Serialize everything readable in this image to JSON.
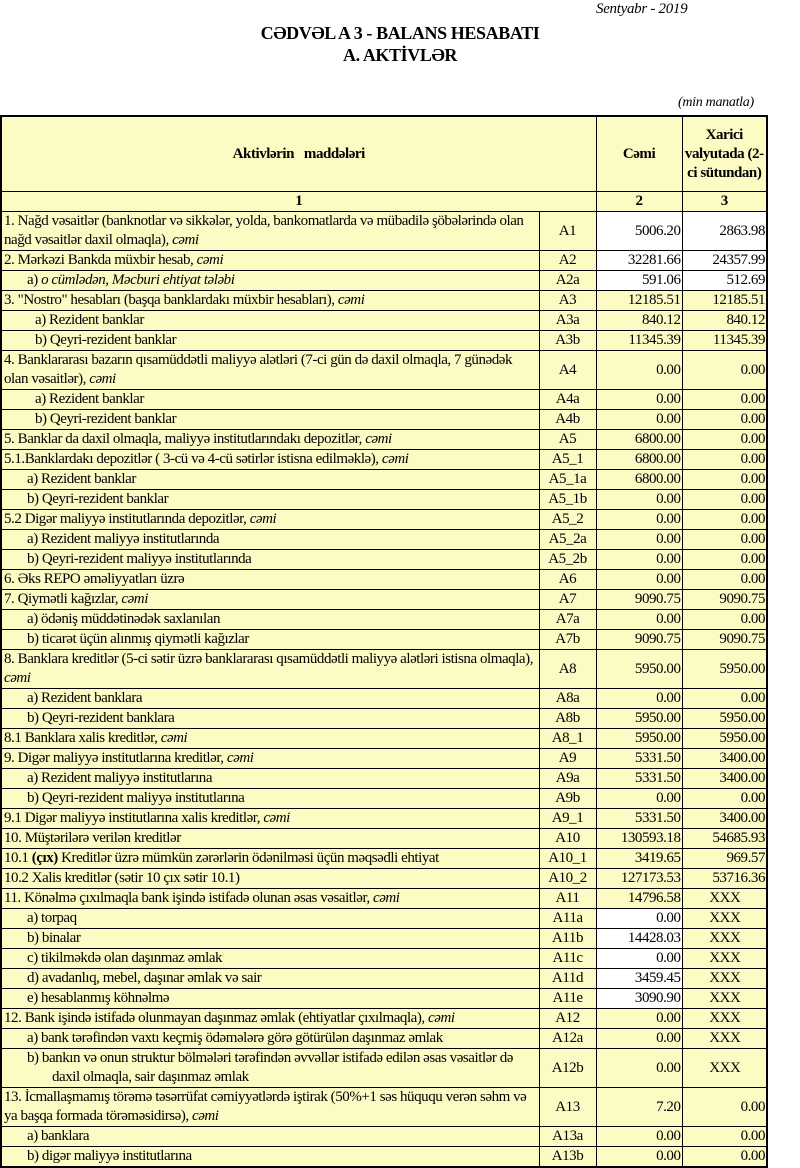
{
  "header": {
    "date": "Sentyabr - 2019",
    "title_line1": "CƏDVƏL A 3 - BALANS HESABATI",
    "title_line2": "A. AKTİVLƏR",
    "unit": "(min manatla)"
  },
  "columns": {
    "items": "Aktivlərin   maddələri",
    "total": "Cəmi",
    "foreign": "Xarici valyutada (2-ci sütundan)",
    "num1": "1",
    "num2": "2",
    "num3": "3"
  },
  "colors": {
    "cell_background": "#fdfbc4",
    "input_cell": "#ffffff"
  },
  "rows": [
    {
      "desc": [
        {
          "t": "1. Nağd vəsaitlər (banknotlar və sikkələr, yolda, bankomatlarda və mübadilə şöbələrində olan nağd vəsaitlər daxil olmaqla), "
        },
        {
          "t": "cəmi",
          "s": "i"
        }
      ],
      "code": "A1",
      "total": "5006.20",
      "foreign": "2863.98",
      "indent": 0,
      "white": [
        1,
        1
      ]
    },
    {
      "desc": [
        {
          "t": "2. Mərkəzi Bankda müxbir hesab, "
        },
        {
          "t": "cəmi",
          "s": "i"
        }
      ],
      "code": "A2",
      "total": "32281.66",
      "foreign": "24357.99",
      "indent": 0,
      "white": [
        1,
        1
      ]
    },
    {
      "desc": [
        {
          "t": "a) "
        },
        {
          "t": "o cümlədən, Məcburi ehtiyat tələbi",
          "s": "i"
        }
      ],
      "code": "A2a",
      "total": "591.06",
      "foreign": "512.69",
      "indent": 1,
      "white": [
        1,
        1
      ]
    },
    {
      "desc": [
        {
          "t": "3. \"Nostro\" hesabları (başqa banklardakı müxbir hesabları), "
        },
        {
          "t": "cəmi",
          "s": "i"
        }
      ],
      "code": "A3",
      "total": "12185.51",
      "foreign": "12185.51",
      "indent": 0
    },
    {
      "desc": [
        {
          "t": "a) Rezident banklar"
        }
      ],
      "code": "A3a",
      "total": "840.12",
      "foreign": "840.12",
      "indent": 2
    },
    {
      "desc": [
        {
          "t": "b) Qeyri-rezident banklar"
        }
      ],
      "code": "A3b",
      "total": "11345.39",
      "foreign": "11345.39",
      "indent": 2
    },
    {
      "desc": [
        {
          "t": "4. Banklararası bazarın qısamüddətli maliyyə alətləri (7-ci gün də daxil olmaqla, 7 günədək olan vəsaitlər), "
        },
        {
          "t": "cəmi",
          "s": "i"
        }
      ],
      "code": "A4",
      "total": "0.00",
      "foreign": "0.00",
      "indent": 0
    },
    {
      "desc": [
        {
          "t": "a) Rezident banklar"
        }
      ],
      "code": "A4a",
      "total": "0.00",
      "foreign": "0.00",
      "indent": 2
    },
    {
      "desc": [
        {
          "t": "b) Qeyri-rezident banklar"
        }
      ],
      "code": "A4b",
      "total": "0.00",
      "foreign": "0.00",
      "indent": 2
    },
    {
      "desc": [
        {
          "t": "5. Banklar da daxil olmaqla, maliyyə institutlarındakı depozitlər, "
        },
        {
          "t": "cəmi",
          "s": "i"
        }
      ],
      "code": "A5",
      "total": "6800.00",
      "foreign": "0.00",
      "indent": 0
    },
    {
      "desc": [
        {
          "t": "5.1.Banklardakı depozitlər ( 3-cü və 4-cü sətirlər istisna edilməklə), "
        },
        {
          "t": "cəmi",
          "s": "i"
        }
      ],
      "code": "A5_1",
      "total": "6800.00",
      "foreign": "0.00",
      "indent": 0
    },
    {
      "desc": [
        {
          "t": "a) Rezident banklar"
        }
      ],
      "code": "A5_1a",
      "total": "6800.00",
      "foreign": "0.00",
      "indent": 1
    },
    {
      "desc": [
        {
          "t": "b) Qeyri-rezident banklar"
        }
      ],
      "code": "A5_1b",
      "total": "0.00",
      "foreign": "0.00",
      "indent": 1
    },
    {
      "desc": [
        {
          "t": "5.2 Digər maliyyə institutlarında depozitlər, "
        },
        {
          "t": "cəmi",
          "s": "i"
        }
      ],
      "code": "A5_2",
      "total": "0.00",
      "foreign": "0.00",
      "indent": 0
    },
    {
      "desc": [
        {
          "t": "a) Rezident maliyyə institutlarında"
        }
      ],
      "code": "A5_2a",
      "total": "0.00",
      "foreign": "0.00",
      "indent": 1
    },
    {
      "desc": [
        {
          "t": "b) Qeyri-rezident maliyyə institutlarında"
        }
      ],
      "code": "A5_2b",
      "total": "0.00",
      "foreign": "0.00",
      "indent": 1
    },
    {
      "desc": [
        {
          "t": "6. Əks REPO əməliyyatları üzrə"
        }
      ],
      "code": "A6",
      "total": "0.00",
      "foreign": "0.00",
      "indent": 0
    },
    {
      "desc": [
        {
          "t": "7. Qiymətli kağızlar, "
        },
        {
          "t": "cəmi",
          "s": "i"
        }
      ],
      "code": "A7",
      "total": "9090.75",
      "foreign": "9090.75",
      "indent": 0
    },
    {
      "desc": [
        {
          "t": "a) ödəniş müddətinədək saxlanılan"
        }
      ],
      "code": "A7a",
      "total": "0.00",
      "foreign": "0.00",
      "indent": 1
    },
    {
      "desc": [
        {
          "t": "b) ticarət üçün alınmış qiymətli kağızlar"
        }
      ],
      "code": "A7b",
      "total": "9090.75",
      "foreign": "9090.75",
      "indent": 1
    },
    {
      "desc": [
        {
          "t": "8. Banklara kreditlər (5-ci sətir üzrə banklararası qısamüddətli maliyyə alətləri istisna olmaqla), "
        },
        {
          "t": "cəmi",
          "s": "i"
        }
      ],
      "code": "A8",
      "total": "5950.00",
      "foreign": "5950.00",
      "indent": 0
    },
    {
      "desc": [
        {
          "t": "a) Rezident banklara"
        }
      ],
      "code": "A8a",
      "total": "0.00",
      "foreign": "0.00",
      "indent": 1
    },
    {
      "desc": [
        {
          "t": "b) Qeyri-rezident banklara"
        }
      ],
      "code": "A8b",
      "total": "5950.00",
      "foreign": "5950.00",
      "indent": 1
    },
    {
      "desc": [
        {
          "t": "8.1 Banklara xalis kreditlər, "
        },
        {
          "t": "cəmi",
          "s": "i"
        }
      ],
      "code": "A8_1",
      "total": "5950.00",
      "foreign": "5950.00",
      "indent": 0
    },
    {
      "desc": [
        {
          "t": "9. Digər maliyyə institutlarına kreditlər, "
        },
        {
          "t": "cəmi",
          "s": "i"
        }
      ],
      "code": "A9",
      "total": "5331.50",
      "foreign": "3400.00",
      "indent": 0
    },
    {
      "desc": [
        {
          "t": "a) Rezident maliyyə institutlarına"
        }
      ],
      "code": "A9a",
      "total": "5331.50",
      "foreign": "3400.00",
      "indent": 1
    },
    {
      "desc": [
        {
          "t": "b) Qeyri-rezident maliyyə institutlarına"
        }
      ],
      "code": "A9b",
      "total": "0.00",
      "foreign": "0.00",
      "indent": 1
    },
    {
      "desc": [
        {
          "t": "9.1 Digər maliyyə institutlarına xalis kreditlər, "
        },
        {
          "t": "cəmi",
          "s": "i"
        }
      ],
      "code": "A9_1",
      "total": "5331.50",
      "foreign": "3400.00",
      "indent": 0
    },
    {
      "desc": [
        {
          "t": "10. Müştərilərə verilən kreditlər"
        }
      ],
      "code": "A10",
      "total": "130593.18",
      "foreign": "54685.93",
      "indent": 0
    },
    {
      "desc": [
        {
          "t": "10.1 "
        },
        {
          "t": "(çıx)",
          "s": "b"
        },
        {
          "t": " Kreditlər üzrə mümkün zərərlərin ödənilməsi üçün məqsədli ehtiyat"
        }
      ],
      "code": "A10_1",
      "total": "3419.65",
      "foreign": "969.57",
      "indent": 0
    },
    {
      "desc": [
        {
          "t": "10.2 Xalis kreditlər (sətir 10 çıx sətir 10.1)"
        }
      ],
      "code": "A10_2",
      "total": "127173.53",
      "foreign": "53716.36",
      "indent": 0
    },
    {
      "desc": [
        {
          "t": "11. Könəlmə çıxılmaqla bank işində istifadə olunan əsas vəsaitlər, "
        },
        {
          "t": "cəmi",
          "s": "i"
        }
      ],
      "code": "A11",
      "total": "14796.58",
      "foreign": "XXX",
      "indent": 0,
      "center3": true
    },
    {
      "desc": [
        {
          "t": "a) torpaq"
        }
      ],
      "code": "A11a",
      "total": "0.00",
      "foreign": "XXX",
      "indent": 1,
      "white": [
        1,
        0
      ],
      "center3": true
    },
    {
      "desc": [
        {
          "t": "b) binalar"
        }
      ],
      "code": "A11b",
      "total": "14428.03",
      "foreign": "XXX",
      "indent": 1,
      "white": [
        1,
        0
      ],
      "center3": true
    },
    {
      "desc": [
        {
          "t": "c) tikilməkdə olan daşınmaz əmlak"
        }
      ],
      "code": "A11c",
      "total": "0.00",
      "foreign": "XXX",
      "indent": 1,
      "white": [
        1,
        0
      ],
      "center3": true
    },
    {
      "desc": [
        {
          "t": "d) avadanlıq, mebel, daşınar əmlak və sair"
        }
      ],
      "code": "A11d",
      "total": "3459.45",
      "foreign": "XXX",
      "indent": 1,
      "white": [
        1,
        0
      ],
      "center3": true
    },
    {
      "desc": [
        {
          "t": "e) hesablanmış köhnəlmə"
        }
      ],
      "code": "A11e",
      "total": "3090.90",
      "foreign": "XXX",
      "indent": 1,
      "white": [
        1,
        0
      ],
      "center3": true
    },
    {
      "desc": [
        {
          "t": "12. Bank işində istifadə olunmayan daşınmaz əmlak (ehtiyatlar çıxılmaqla), "
        },
        {
          "t": "cəmi",
          "s": "i"
        }
      ],
      "code": "A12",
      "total": "0.00",
      "foreign": "XXX",
      "indent": 0,
      "center3": true
    },
    {
      "desc": [
        {
          "t": "a) bank tərəfindən vaxtı keçmiş ödəmələrə görə götürülən daşınmaz əmlak"
        }
      ],
      "code": "A12a",
      "total": "0.00",
      "foreign": "XXX",
      "indent": 1,
      "center3": true
    },
    {
      "desc": [
        {
          "t": "b) bankın və onun struktur bölmələri tərəfindən əvvəllər istifadə edilən əsas vəsaitlər də daxil olmaqla, sair daşınmaz əmlak"
        }
      ],
      "code": "A12b",
      "total": "0.00",
      "foreign": "XXX",
      "indent": 1,
      "center3": true
    },
    {
      "desc": [
        {
          "t": "13. İcmallaşmamış törəmə təsərrüfat cəmiyyətlərdə iştirak (50%+1 səs hüququ verən səhm və ya başqa formada törəməsidirsə), "
        },
        {
          "t": "cəmi",
          "s": "i"
        }
      ],
      "code": "A13",
      "total": "7.20",
      "foreign": "0.00",
      "indent": 0
    },
    {
      "desc": [
        {
          "t": "a) banklara"
        }
      ],
      "code": "A13a",
      "total": "0.00",
      "foreign": "0.00",
      "indent": 1
    },
    {
      "desc": [
        {
          "t": "b) digər maliyyə institutlarına"
        }
      ],
      "code": "A13b",
      "total": "0.00",
      "foreign": "0.00",
      "indent": 1
    }
  ]
}
